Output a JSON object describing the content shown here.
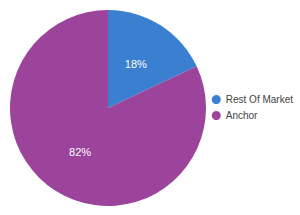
{
  "chart_data": {
    "type": "pie",
    "categories": [
      "Rest Of Market",
      "Anchor"
    ],
    "values": [
      18,
      82
    ],
    "value_labels": [
      "18%",
      "82%"
    ],
    "colors": [
      "#3b7fd0",
      "#9c439c"
    ],
    "data_labels": true,
    "legend": "right"
  }
}
